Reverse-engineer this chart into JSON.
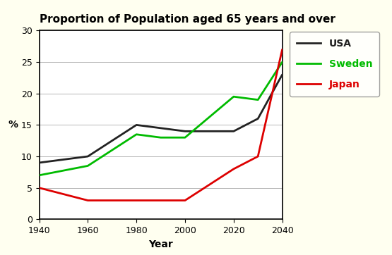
{
  "title": "Proportion of Population aged 65 years and over",
  "xlabel": "Year",
  "ylabel": "%",
  "years": [
    1940,
    1960,
    1980,
    1990,
    2000,
    2020,
    2030,
    2040
  ],
  "usa": [
    9,
    10,
    15,
    14.5,
    14,
    14,
    16,
    23
  ],
  "sweden": [
    7,
    8.5,
    13.5,
    13,
    13,
    19.5,
    19,
    25
  ],
  "japan": [
    5,
    3,
    3,
    3,
    3,
    8,
    10,
    27
  ],
  "usa_color": "#222222",
  "sweden_color": "#00bb00",
  "japan_color": "#dd0000",
  "ylim": [
    0,
    30
  ],
  "xlim": [
    1940,
    2040
  ],
  "xticks": [
    1940,
    1960,
    1980,
    2000,
    2020,
    2040
  ],
  "yticks": [
    0,
    5,
    10,
    15,
    20,
    25,
    30
  ],
  "outer_bg": "#fffff0",
  "plot_bg": "#ffffff",
  "linewidth": 2.0,
  "legend_labels": [
    "USA",
    "Sweden",
    "Japan"
  ],
  "legend_colors": [
    "#222222",
    "#00bb00",
    "#dd0000"
  ],
  "title_fontsize": 11,
  "tick_fontsize": 9,
  "label_fontsize": 10
}
